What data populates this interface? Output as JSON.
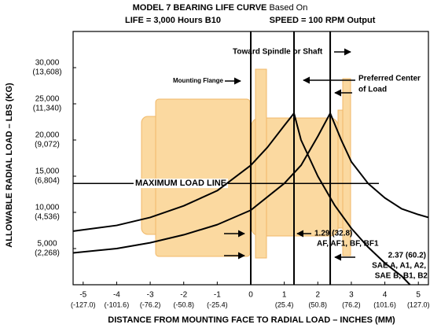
{
  "chart_data": {
    "type": "line",
    "title": "MODEL 7 BEARING LIFE CURVE",
    "title_suffix": "Based On",
    "subtitle_left": "LIFE = 3,000 Hours B10",
    "subtitle_right": "SPEED = 100 RPM Output",
    "x_label": "DISTANCE FROM MOUNTING FACE TO RADIAL LOAD – INCHES (MM)",
    "y_label": "ALLOWABLE RADIAL LOAD – LBS (KG)",
    "xlim": [
      -5.3,
      5.3
    ],
    "ylim": [
      0,
      35000
    ],
    "xticks": [
      -5,
      -4,
      -3,
      -2,
      -1,
      0,
      1,
      2,
      3,
      4,
      5
    ],
    "x2ticks": [
      {
        "value": -5,
        "label": "(-127.0)"
      },
      {
        "value": -4,
        "label": "(-101.6)"
      },
      {
        "value": -3,
        "label": "(-76.2)"
      },
      {
        "value": -2,
        "label": "(-50.8)"
      },
      {
        "value": -1,
        "label": "(-25.4)"
      },
      {
        "value": 1,
        "label": "(25.4)"
      },
      {
        "value": 2,
        "label": "(50.8)"
      },
      {
        "value": 3,
        "label": "(76.2)"
      },
      {
        "value": 4,
        "label": "(101.6)"
      },
      {
        "value": 5,
        "label": "(127.0)"
      }
    ],
    "yticks": [
      {
        "value": 5000,
        "label": "5,000"
      },
      {
        "value": 10000,
        "label": "10,000"
      },
      {
        "value": 15000,
        "label": "15,000"
      },
      {
        "value": 20000,
        "label": "20,000"
      },
      {
        "value": 25000,
        "label": "25,000"
      },
      {
        "value": 30000,
        "label": "30,000"
      }
    ],
    "y2ticks": [
      {
        "value": 5000,
        "label": "(2,268)"
      },
      {
        "value": 10000,
        "label": "(4,536)"
      },
      {
        "value": 15000,
        "label": "(6,804)"
      },
      {
        "value": 20000,
        "label": "(9,072)"
      },
      {
        "value": 25000,
        "label": "(11,340)"
      },
      {
        "value": 30000,
        "label": "(13,608)"
      }
    ],
    "vlines": [
      0,
      1.29,
      2.37
    ],
    "max_load": {
      "value": 14000,
      "label": "MAXIMUM LOAD LINE"
    },
    "series": [
      {
        "color": "#000000",
        "x": [
          -5.3,
          -4,
          -3,
          -2,
          -1,
          0,
          0.5,
          1,
          1.29,
          1.5,
          2,
          2.5,
          3,
          3.5,
          4,
          4.5,
          4.75
        ],
        "values": [
          7400,
          8200,
          9300,
          10900,
          13000,
          16500,
          19000,
          22000,
          23700,
          20000,
          15000,
          11000,
          7800,
          5200,
          3000,
          1200,
          0
        ]
      },
      {
        "color": "#000000",
        "x": [
          -5.3,
          -4,
          -3,
          -2,
          -1,
          0,
          1,
          1.5,
          2,
          2.37,
          2.7,
          3,
          3.5,
          4,
          4.5,
          5,
          5.3
        ],
        "values": [
          4400,
          5000,
          5800,
          6900,
          8300,
          10300,
          14000,
          16500,
          20500,
          23700,
          20000,
          17000,
          14000,
          12000,
          10500,
          9700,
          9300
        ]
      }
    ],
    "annotations": [
      {
        "lines": [
          "Toward Spindle or Shaft"
        ]
      },
      {
        "lines": [
          "Mounting Flange"
        ]
      },
      {
        "lines": [
          "Preferred Center",
          "of Load"
        ]
      },
      {
        "lines": [
          "1.29 (32.8)",
          "AF, AF1, BF, BF1"
        ]
      },
      {
        "lines": [
          "2.37 (60.2)",
          "SAE A, A1, A2,",
          "SAE B, B1, B2"
        ]
      }
    ]
  }
}
